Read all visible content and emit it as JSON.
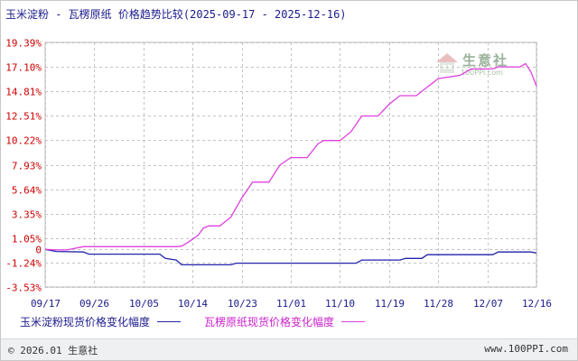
{
  "title": "玉米淀粉 - 瓦楞原纸 价格趋势比较(2025-09-17 - 2025-12-16)",
  "footer": {
    "copyright": "© 2026.01 生意社",
    "url": "www.100PPI.com"
  },
  "watermark": {
    "name": "生意社",
    "url": "100PPI.com"
  },
  "colors": {
    "series_1": "#2222aa",
    "series_2": "#e040e0",
    "grid": "#c4c4c4",
    "tick_text": "#cc0000",
    "axis_text": "#1a1a8c"
  },
  "chart_data": {
    "type": "line",
    "title": "玉米淀粉 - 瓦楞原纸 价格趋势比较(2025-09-17 - 2025-12-16)",
    "y_ticks": [
      "19.39%",
      "17.10%",
      "14.81%",
      "12.51%",
      "10.22%",
      "7.93%",
      "5.64%",
      "3.35%",
      "1.05%",
      "0",
      "-1.24%",
      "-3.53%"
    ],
    "y_tick_values": [
      19.39,
      17.1,
      14.81,
      12.51,
      10.22,
      7.93,
      5.64,
      3.35,
      1.05,
      0,
      -1.24,
      -3.53
    ],
    "ylim": [
      -3.53,
      19.39
    ],
    "x_ticks": [
      "09/17",
      "09/26",
      "10/05",
      "10/14",
      "10/23",
      "11/01",
      "11/10",
      "11/19",
      "11/28",
      "12/07",
      "12/16"
    ],
    "xlim": [
      "09/17",
      "12/16"
    ],
    "grid": true,
    "legend_position": "bottom",
    "series": [
      {
        "name": "玉米淀粉现货价格变化幅度",
        "points": [
          [
            "09/17",
            0
          ],
          [
            "09/19",
            -0.2
          ],
          [
            "09/24",
            -0.25
          ],
          [
            "09/25",
            -0.45
          ],
          [
            "10/08",
            -0.45
          ],
          [
            "10/09",
            -0.85
          ],
          [
            "10/11",
            -1.0
          ],
          [
            "10/12",
            -1.45
          ],
          [
            "10/21",
            -1.45
          ],
          [
            "10/22",
            -1.3
          ],
          [
            "11/13",
            -1.3
          ],
          [
            "11/14",
            -1.0
          ],
          [
            "11/21",
            -1.0
          ],
          [
            "11/22",
            -0.85
          ],
          [
            "11/25",
            -0.85
          ],
          [
            "11/26",
            -0.5
          ],
          [
            "12/08",
            -0.5
          ],
          [
            "12/09",
            -0.25
          ],
          [
            "12/15",
            -0.25
          ],
          [
            "12/16",
            -0.35
          ]
        ]
      },
      {
        "name": "瓦楞原纸现货价格变化幅度",
        "points": [
          [
            "09/17",
            0
          ],
          [
            "09/19",
            -0.05
          ],
          [
            "09/21",
            -0.05
          ],
          [
            "09/24",
            0.25
          ],
          [
            "10/11",
            0.25
          ],
          [
            "10/12",
            0.3
          ],
          [
            "10/13",
            0.6
          ],
          [
            "10/15",
            1.3
          ],
          [
            "10/16",
            2.0
          ],
          [
            "10/17",
            2.2
          ],
          [
            "10/19",
            2.2
          ],
          [
            "10/21",
            3.0
          ],
          [
            "10/23",
            4.8
          ],
          [
            "10/25",
            6.3
          ],
          [
            "10/28",
            6.3
          ],
          [
            "10/30",
            7.9
          ],
          [
            "11/01",
            8.6
          ],
          [
            "11/04",
            8.6
          ],
          [
            "11/06",
            9.9
          ],
          [
            "11/07",
            10.2
          ],
          [
            "11/10",
            10.2
          ],
          [
            "11/12",
            11.0
          ],
          [
            "11/14",
            12.5
          ],
          [
            "11/17",
            12.5
          ],
          [
            "11/19",
            13.6
          ],
          [
            "11/21",
            14.4
          ],
          [
            "11/24",
            14.4
          ],
          [
            "11/26",
            15.2
          ],
          [
            "11/27",
            15.6
          ],
          [
            "11/28",
            16.0
          ],
          [
            "12/02",
            16.3
          ],
          [
            "12/04",
            16.9
          ],
          [
            "12/08",
            16.9
          ],
          [
            "12/09",
            17.1
          ],
          [
            "12/13",
            17.1
          ],
          [
            "12/14",
            17.4
          ],
          [
            "12/15",
            16.6
          ],
          [
            "12/16",
            15.3
          ]
        ]
      }
    ]
  }
}
